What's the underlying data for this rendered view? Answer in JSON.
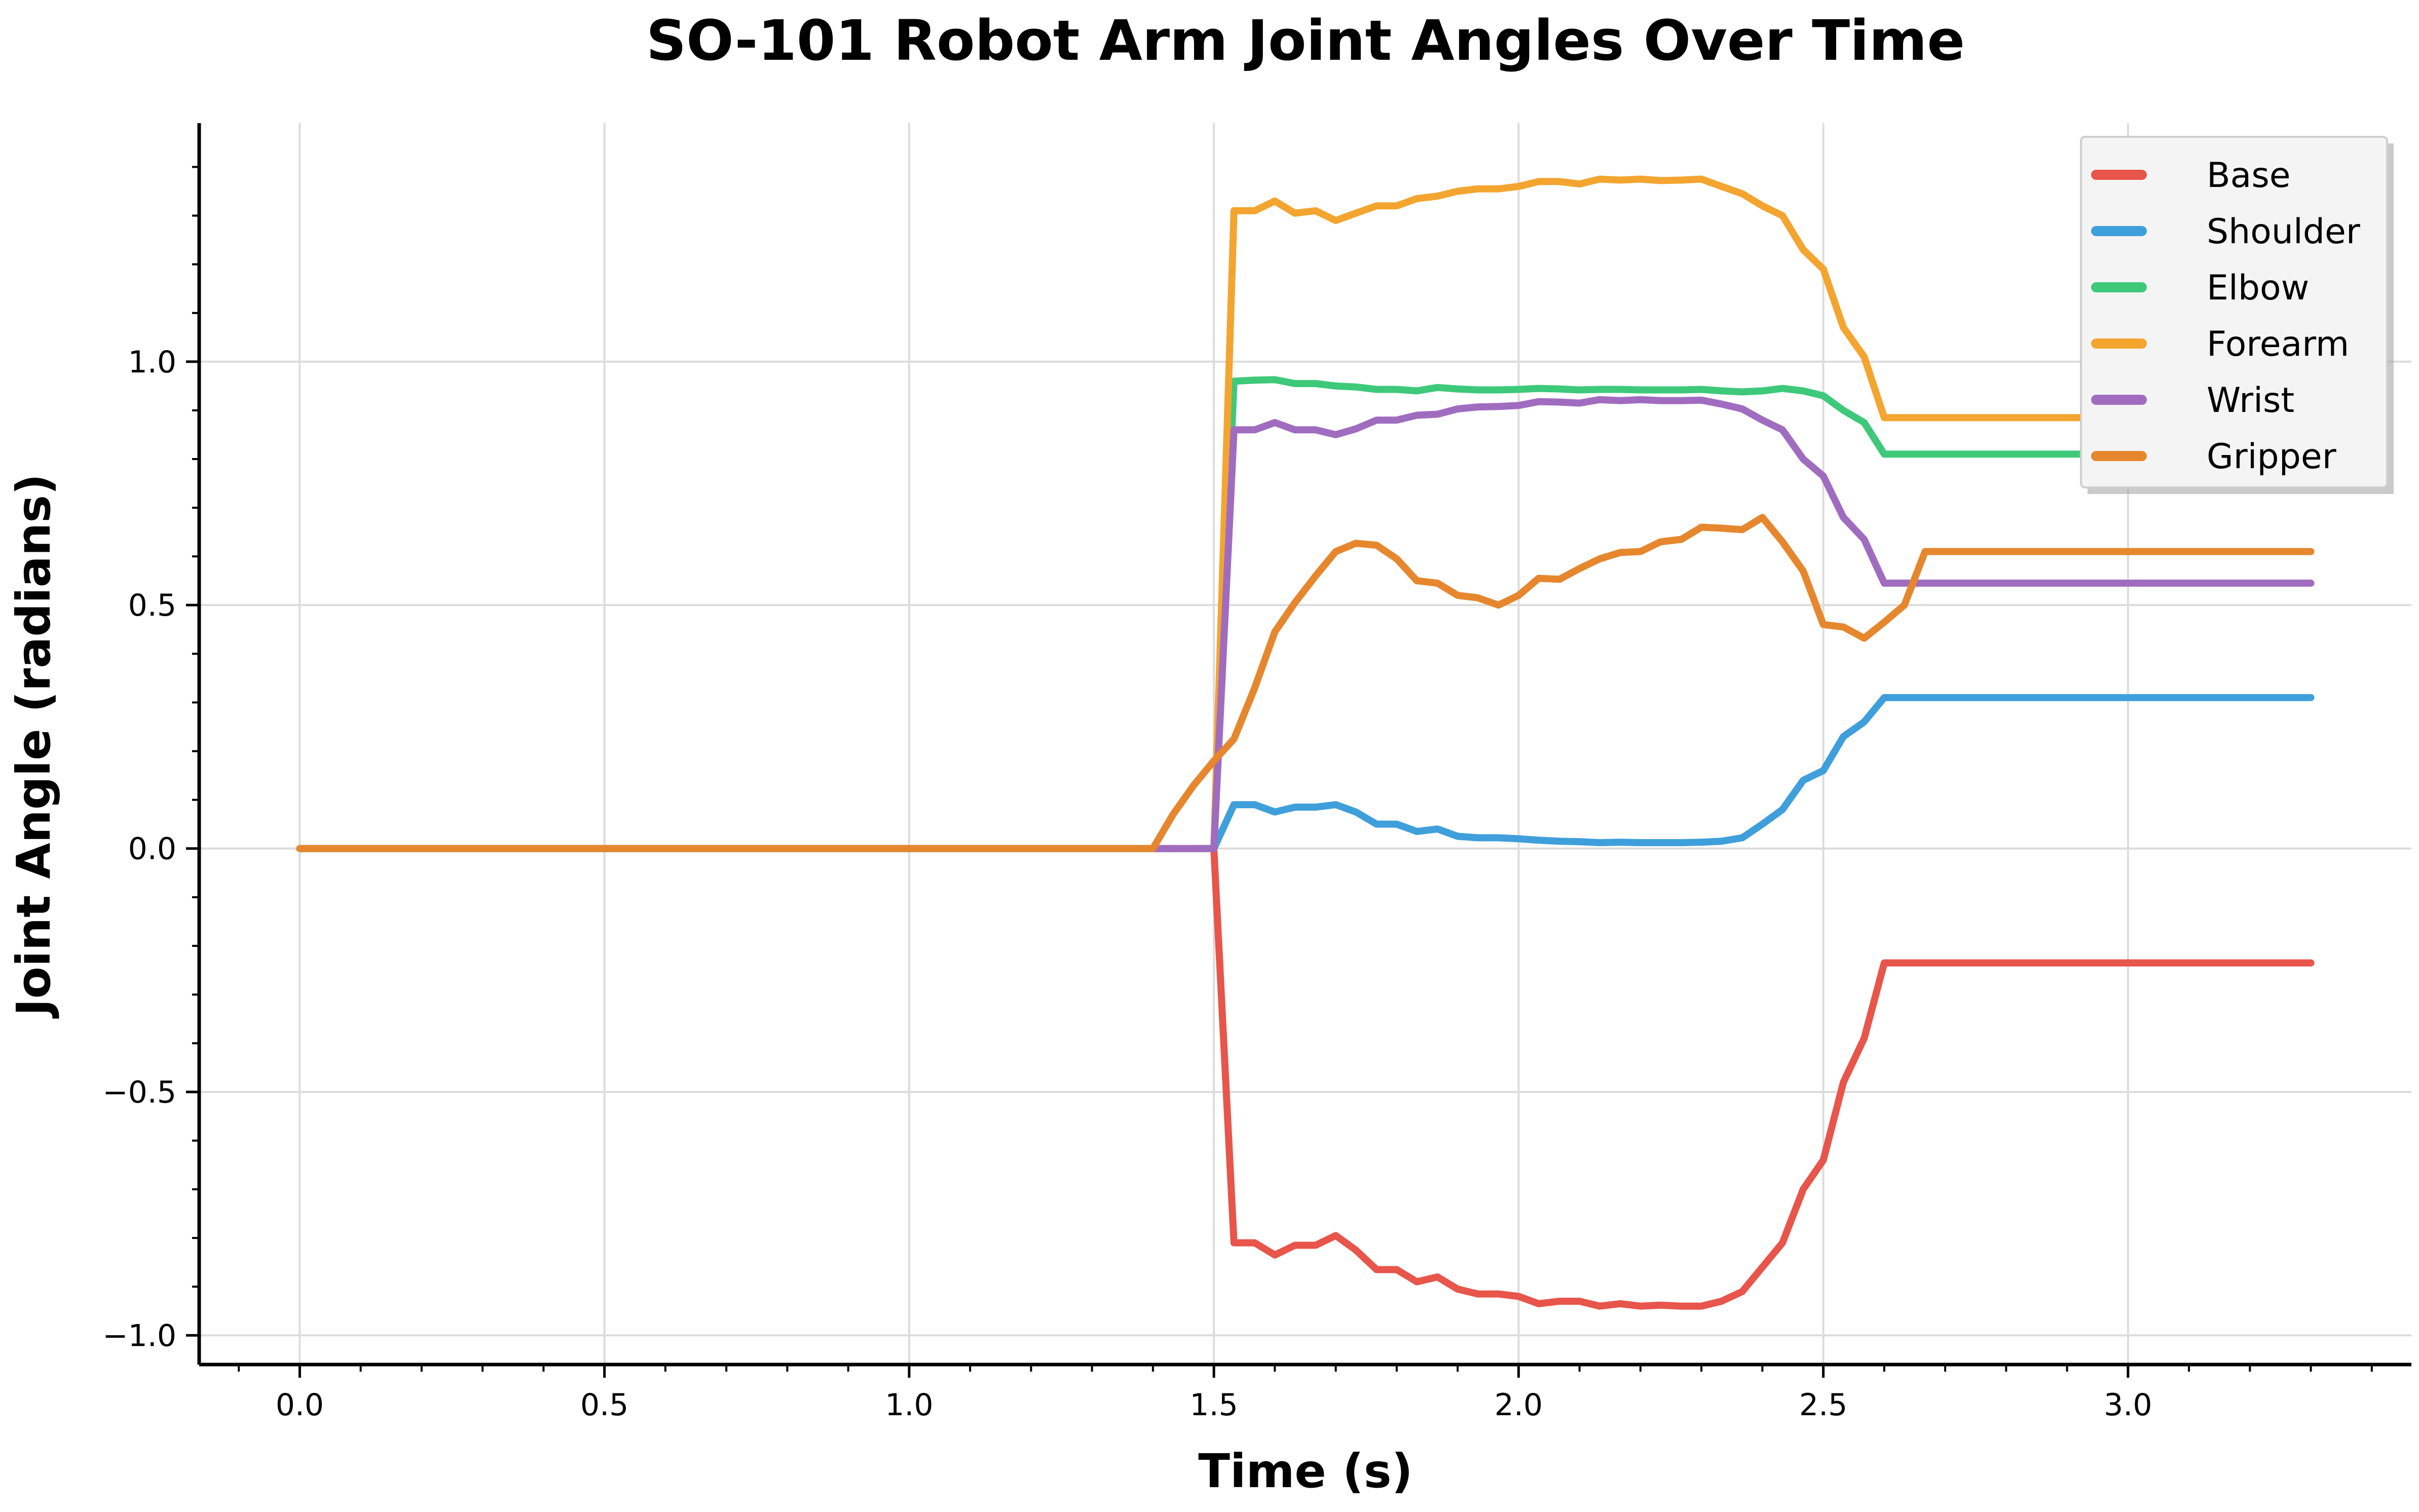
{
  "chart_data": {
    "type": "line",
    "title": "SO-101 Robot Arm Joint Angles Over Time",
    "xlabel": "Time (s)",
    "ylabel": "Joint Angle (radians)",
    "xlim": [
      -0.165,
      3.465
    ],
    "ylim": [
      -1.06,
      1.49
    ],
    "xticks": [
      0.0,
      0.5,
      1.0,
      1.5,
      2.0,
      2.5,
      3.0
    ],
    "xtick_labels": [
      "0.0",
      "0.5",
      "1.0",
      "1.5",
      "2.0",
      "2.5",
      "3.0"
    ],
    "yticks": [
      -1.0,
      -0.5,
      0.0,
      0.5,
      1.0
    ],
    "ytick_labels": [
      "−1.0",
      "−0.5",
      "0.0",
      "0.5",
      "1.0"
    ],
    "grid": true,
    "legend_position": "top-right",
    "x": [
      0.0,
      0.5,
      1.0,
      1.4,
      1.433,
      1.467,
      1.5,
      1.533,
      1.567,
      1.6,
      1.633,
      1.667,
      1.7,
      1.733,
      1.767,
      1.8,
      1.833,
      1.867,
      1.9,
      1.933,
      1.967,
      2.0,
      2.033,
      2.067,
      2.1,
      2.133,
      2.167,
      2.2,
      2.233,
      2.267,
      2.3,
      2.333,
      2.367,
      2.4,
      2.433,
      2.467,
      2.5,
      2.533,
      2.567,
      2.6,
      2.633,
      2.667,
      3.0,
      3.3
    ],
    "series": [
      {
        "name": "Base",
        "color": "#e8554a",
        "values": [
          0,
          0,
          0,
          0,
          0,
          0,
          0,
          -0.81,
          -0.81,
          -0.835,
          -0.815,
          -0.815,
          -0.795,
          -0.825,
          -0.865,
          -0.865,
          -0.89,
          -0.88,
          -0.905,
          -0.915,
          -0.915,
          -0.92,
          -0.935,
          -0.93,
          -0.93,
          -0.94,
          -0.935,
          -0.94,
          -0.938,
          -0.94,
          -0.94,
          -0.93,
          -0.91,
          -0.86,
          -0.81,
          -0.7,
          -0.64,
          -0.48,
          -0.39,
          -0.235,
          -0.235,
          -0.235,
          -0.235,
          -0.235
        ]
      },
      {
        "name": "Shoulder",
        "color": "#3f9fdb",
        "values": [
          0,
          0,
          0,
          0,
          0,
          0,
          0,
          0.09,
          0.09,
          0.075,
          0.085,
          0.085,
          0.09,
          0.075,
          0.05,
          0.05,
          0.035,
          0.04,
          0.025,
          0.022,
          0.022,
          0.02,
          0.017,
          0.015,
          0.014,
          0.012,
          0.013,
          0.012,
          0.012,
          0.012,
          0.013,
          0.015,
          0.022,
          0.05,
          0.08,
          0.14,
          0.16,
          0.23,
          0.26,
          0.31,
          0.31,
          0.31,
          0.31,
          0.31
        ]
      },
      {
        "name": "Elbow",
        "color": "#3ec97a",
        "values": [
          0,
          0,
          0,
          0,
          0,
          0,
          0,
          0.96,
          0.962,
          0.963,
          0.955,
          0.955,
          0.95,
          0.948,
          0.943,
          0.943,
          0.94,
          0.947,
          0.944,
          0.942,
          0.942,
          0.943,
          0.945,
          0.944,
          0.942,
          0.943,
          0.943,
          0.942,
          0.942,
          0.942,
          0.943,
          0.94,
          0.938,
          0.94,
          0.945,
          0.94,
          0.93,
          0.9,
          0.875,
          0.81,
          0.81,
          0.81,
          0.81,
          0.81
        ]
      },
      {
        "name": "Forearm",
        "color": "#f3a530",
        "values": [
          0,
          0,
          0,
          0,
          0,
          0,
          0,
          1.31,
          1.31,
          1.33,
          1.305,
          1.31,
          1.29,
          1.305,
          1.32,
          1.32,
          1.335,
          1.34,
          1.35,
          1.355,
          1.355,
          1.36,
          1.37,
          1.37,
          1.365,
          1.375,
          1.373,
          1.375,
          1.372,
          1.373,
          1.375,
          1.36,
          1.345,
          1.32,
          1.3,
          1.23,
          1.19,
          1.07,
          1.01,
          0.885,
          0.885,
          0.885,
          0.885,
          0.885
        ]
      },
      {
        "name": "Wrist",
        "color": "#a06cc0",
        "values": [
          0,
          0,
          0,
          0,
          0,
          0,
          0,
          0.86,
          0.86,
          0.875,
          0.86,
          0.86,
          0.85,
          0.862,
          0.88,
          0.88,
          0.89,
          0.892,
          0.903,
          0.907,
          0.908,
          0.91,
          0.918,
          0.917,
          0.915,
          0.922,
          0.92,
          0.922,
          0.92,
          0.92,
          0.921,
          0.913,
          0.903,
          0.88,
          0.86,
          0.8,
          0.765,
          0.68,
          0.635,
          0.545,
          0.545,
          0.545,
          0.545,
          0.545
        ]
      },
      {
        "name": "Gripper",
        "color": "#e6872e",
        "values": [
          0,
          0,
          0,
          0,
          0.07,
          0.13,
          0.18,
          0.225,
          0.33,
          0.445,
          0.505,
          0.56,
          0.61,
          0.627,
          0.623,
          0.595,
          0.55,
          0.545,
          0.52,
          0.515,
          0.5,
          0.52,
          0.555,
          0.553,
          0.575,
          0.595,
          0.608,
          0.61,
          0.63,
          0.635,
          0.66,
          0.658,
          0.655,
          0.68,
          0.63,
          0.57,
          0.46,
          0.455,
          0.432,
          0.465,
          0.5,
          0.61,
          0.61,
          0.61
        ]
      }
    ]
  }
}
